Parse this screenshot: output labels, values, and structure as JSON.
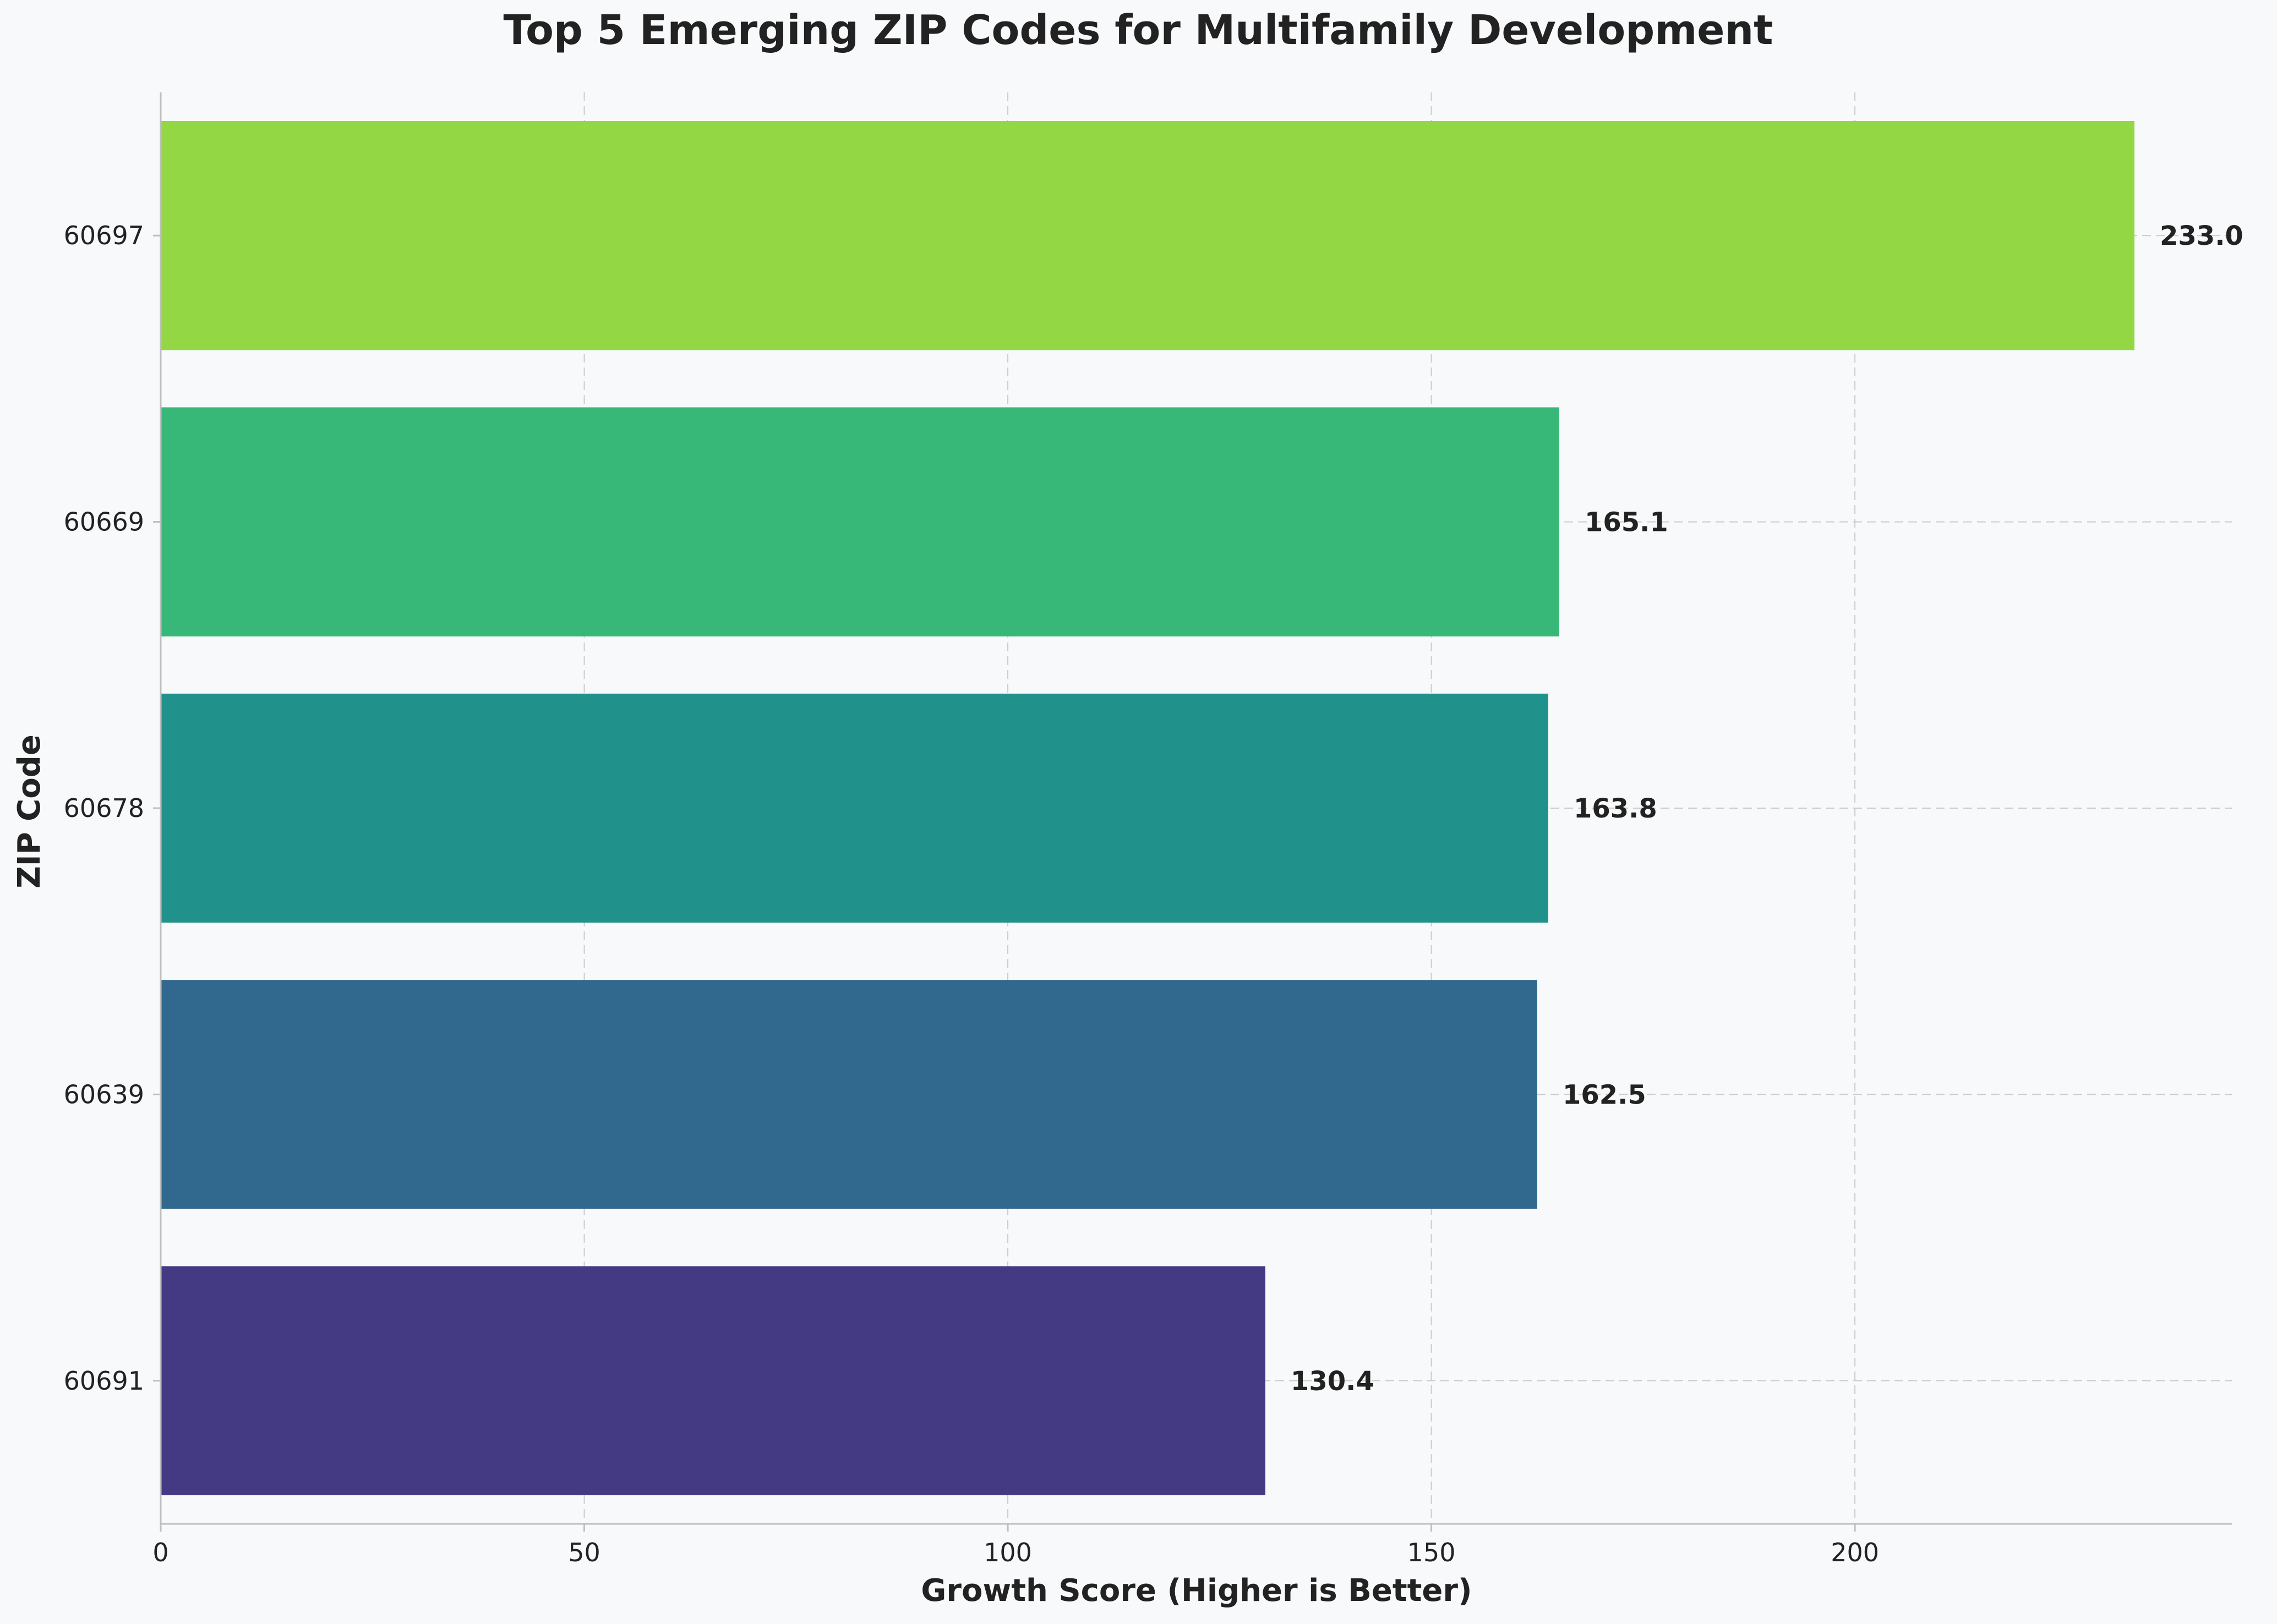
{
  "chart_data": {
    "type": "bar",
    "orientation": "horizontal",
    "title": "Top 5 Emerging ZIP Codes for Multifamily Development",
    "xlabel": "Growth Score (Higher is Better)",
    "ylabel": "ZIP Code",
    "xlim": [
      0,
      244.5
    ],
    "xticks": [
      0,
      50,
      100,
      150,
      200
    ],
    "grid": true,
    "categories": [
      "60697",
      "60669",
      "60678",
      "60639",
      "60691"
    ],
    "values": [
      233.0,
      165.1,
      163.8,
      162.5,
      130.4
    ],
    "value_labels": [
      "233.0",
      "165.1",
      "163.8",
      "162.5",
      "130.4"
    ],
    "colors": [
      "#94d744",
      "#37b879",
      "#21918c",
      "#31688e",
      "#443983"
    ]
  }
}
